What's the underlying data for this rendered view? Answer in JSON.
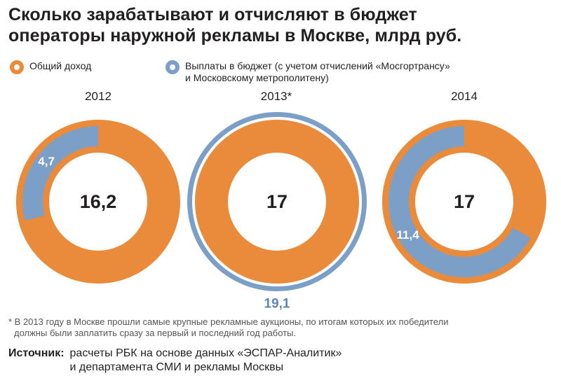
{
  "title_line1": "Сколько зарабатывают и отчисляют в бюджет",
  "title_line2": "операторы наружной рекламы в Москве, млрд руб.",
  "legend": {
    "income": "Общий доход",
    "budget_line1": "Выплаты в бюджет (с учетом отчислений «Мосгортрансу»",
    "budget_line2": "и Московскому метрополитену)"
  },
  "colors": {
    "income": "#e98b3a",
    "budget": "#7b9fc6",
    "budget_label": "#ffffff",
    "outer_label": "#5b86b8"
  },
  "chart_data": {
    "type": "donut",
    "series": [
      {
        "name": "Общий доход"
      },
      {
        "name": "Выплаты в бюджет (с учетом отчислений «Мосгортрансу» и Московскому метрополитену)"
      }
    ],
    "years": [
      {
        "year": "2012",
        "income": 16.2,
        "income_label": "16,2",
        "budget": 4.7,
        "budget_label": "4,7"
      },
      {
        "year": "2013*",
        "income": 17,
        "income_label": "17",
        "budget": 19.1,
        "budget_label": "19,1"
      },
      {
        "year": "2014",
        "income": 17,
        "income_label": "17",
        "budget": 11.4,
        "budget_label": "11,4"
      }
    ]
  },
  "footnote_line1": "* В 2013 году в Москве прошли самые крупные рекламные аукционы, по итогам которых их победители",
  "footnote_line2": "должны были заплатить сразу за первый и последний год работы.",
  "source_label": "Источник:",
  "source_line1": "расчеты РБК на основе данных «ЭСПАР-Аналитик»",
  "source_line2": "и департамента СМИ и рекламы Москвы"
}
